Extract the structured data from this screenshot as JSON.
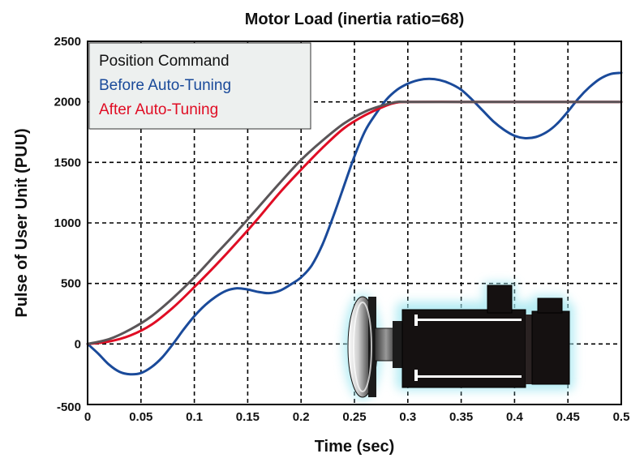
{
  "chart_data": {
    "type": "line",
    "title": "Motor Load (inertia ratio=68)",
    "xlabel": "Time (sec)",
    "ylabel": "Pulse of User Unit (PUU)",
    "xlim": [
      0,
      0.5
    ],
    "ylim": [
      -500,
      2500
    ],
    "x_ticks": [
      "0",
      "0.05",
      "0.1",
      "0.15",
      "0.2",
      "0.25",
      "0.3",
      "0.35",
      "0.4",
      "0.45",
      "0.5"
    ],
    "y_ticks": [
      "2500",
      "2000",
      "1500",
      "1000",
      "500",
      "0",
      "-500"
    ],
    "grid": true,
    "legend_position": "top-left",
    "series": [
      {
        "name": "Position Command",
        "color": "#5a5558",
        "x": [
          0,
          0.02,
          0.04,
          0.06,
          0.08,
          0.1,
          0.12,
          0.14,
          0.16,
          0.18,
          0.2,
          0.22,
          0.24,
          0.26,
          0.28,
          0.29,
          0.3,
          0.35,
          0.4,
          0.45,
          0.5
        ],
        "y": [
          0,
          40,
          120,
          230,
          380,
          550,
          740,
          930,
          1130,
          1330,
          1520,
          1680,
          1820,
          1920,
          1980,
          2000,
          2000,
          2000,
          2000,
          2000,
          2000
        ]
      },
      {
        "name": "Before Auto-Tuning",
        "color": "#1a4a9a",
        "x": [
          0,
          0.01,
          0.02,
          0.03,
          0.04,
          0.05,
          0.06,
          0.07,
          0.08,
          0.09,
          0.1,
          0.11,
          0.12,
          0.13,
          0.14,
          0.15,
          0.16,
          0.17,
          0.18,
          0.19,
          0.2,
          0.21,
          0.22,
          0.23,
          0.24,
          0.25,
          0.26,
          0.27,
          0.28,
          0.29,
          0.3,
          0.31,
          0.32,
          0.33,
          0.34,
          0.35,
          0.36,
          0.37,
          0.38,
          0.39,
          0.4,
          0.41,
          0.42,
          0.43,
          0.44,
          0.45,
          0.46,
          0.47,
          0.48,
          0.49,
          0.5
        ],
        "y": [
          0,
          -80,
          -170,
          -230,
          -250,
          -240,
          -190,
          -110,
          0,
          120,
          230,
          320,
          390,
          440,
          460,
          450,
          430,
          420,
          440,
          490,
          550,
          650,
          820,
          1050,
          1300,
          1550,
          1760,
          1900,
          2020,
          2100,
          2150,
          2180,
          2190,
          2180,
          2150,
          2100,
          2020,
          1930,
          1840,
          1770,
          1720,
          1700,
          1710,
          1750,
          1820,
          1920,
          2030,
          2120,
          2190,
          2230,
          2240
        ]
      },
      {
        "name": "After Auto-Tuning",
        "color": "#e00d24",
        "x": [
          0,
          0.02,
          0.04,
          0.06,
          0.08,
          0.1,
          0.12,
          0.14,
          0.16,
          0.18,
          0.2,
          0.22,
          0.24,
          0.26,
          0.28,
          0.29,
          0.3,
          0.35,
          0.4,
          0.45,
          0.5
        ],
        "y": [
          0,
          20,
          70,
          160,
          300,
          470,
          650,
          840,
          1040,
          1250,
          1440,
          1620,
          1780,
          1890,
          1970,
          1995,
          2000,
          2000,
          2000,
          2000,
          2000
        ]
      }
    ]
  }
}
